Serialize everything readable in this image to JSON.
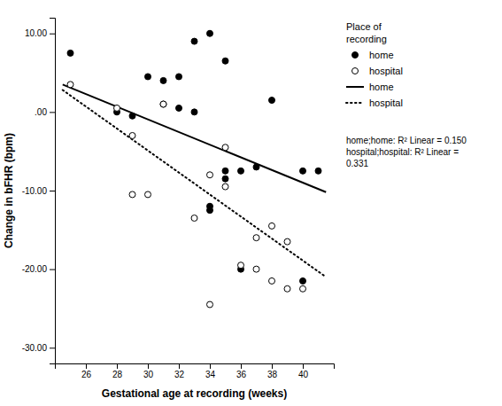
{
  "chart_data": {
    "type": "scatter",
    "x_label": "Gestational age at recording (weeks)",
    "y_label": "Change in bFHR (bpm)",
    "xlim": [
      24.0,
      42.0
    ],
    "ylim": [
      -32.0,
      12.0
    ],
    "xticks": [
      26,
      28,
      30,
      32,
      34,
      36,
      38,
      40
    ],
    "yticks": [
      {
        "value": -30.0,
        "label": "-30.00"
      },
      {
        "value": -20.0,
        "label": "-20.00"
      },
      {
        "value": -10.0,
        "label": "-10.00"
      },
      {
        "value": 0.0,
        "label": ".00"
      },
      {
        "value": 10.0,
        "label": "10.00"
      }
    ],
    "grid": false,
    "legend": "right",
    "legend_title": "Place of\nrecording",
    "annotation": "home;home: R² Linear = 0.150\nhospital;hospital: R² Linear =\n0.331",
    "series": [
      {
        "name": "home",
        "type": "scatter",
        "marker": "circle",
        "color": "#000000",
        "x": [
          25,
          28,
          29,
          30,
          31,
          31,
          32,
          32,
          33,
          33,
          34,
          34,
          34,
          35,
          35,
          35,
          36,
          36,
          37,
          38,
          40,
          40,
          41
        ],
        "values": [
          7.5,
          0.0,
          -0.5,
          4.5,
          4.0,
          1.0,
          0.5,
          4.5,
          9.0,
          0.0,
          10.0,
          -12.0,
          -12.5,
          6.5,
          -7.5,
          -8.5,
          -7.5,
          -20.0,
          -7.0,
          1.5,
          -21.5,
          -7.5,
          -7.5
        ]
      },
      {
        "name": "hospital",
        "type": "scatter",
        "marker": "circle-open",
        "color": "#000000",
        "x": [
          25,
          28,
          29,
          29,
          30,
          31,
          33,
          34,
          34,
          35,
          35,
          36,
          37,
          37,
          38,
          38,
          39,
          39,
          40
        ],
        "values": [
          3.5,
          0.5,
          -3.0,
          -10.5,
          -10.5,
          1.0,
          -13.5,
          -8.0,
          -24.5,
          -4.5,
          -9.5,
          -19.5,
          -16.0,
          -20.0,
          -14.5,
          -21.5,
          -22.5,
          -16.5,
          -22.5
        ]
      },
      {
        "name": "home",
        "type": "line",
        "line_style": "solid",
        "color": "#000000",
        "x": [
          24.5,
          41.5
        ],
        "values": [
          3.5,
          -10.2
        ]
      },
      {
        "name": "hospital",
        "type": "line",
        "line_style": "dotted",
        "color": "#000000",
        "x": [
          24.5,
          41.5
        ],
        "values": [
          2.8,
          -21.0
        ]
      }
    ]
  }
}
